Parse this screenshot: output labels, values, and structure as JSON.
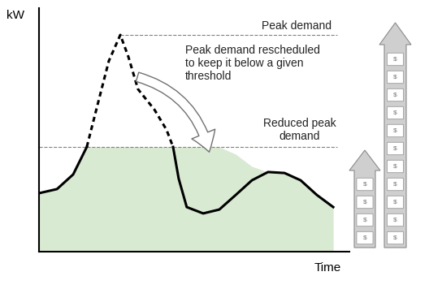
{
  "chart_data": {
    "type": "line",
    "xlabel": "Time",
    "ylabel": "kW",
    "x": [
      0,
      5.8,
      11.0,
      15.4,
      18.8,
      22.5,
      26.2,
      28.8,
      31.9,
      37.2,
      41.1,
      43.2,
      45.0,
      47.6,
      52.9,
      58.1,
      63.4,
      68.6,
      73.8,
      79.1,
      84.3,
      89.5,
      94.8
    ],
    "series": [
      {
        "type": "line",
        "color": "#000000",
        "values": [
          24.0,
          25.7,
          31.7,
          43.0,
          60.0,
          78.3,
          89.0,
          80.0,
          66.7,
          58.3,
          50.0,
          43.0,
          30.0,
          18.3,
          15.7,
          17.3,
          23.3,
          29.3,
          32.7,
          32.3,
          29.3,
          23.3,
          18.3
        ]
      },
      {
        "type": "area",
        "color": "#d9ead3",
        "values": [
          24.0,
          25.7,
          31.7,
          43.0,
          43.0,
          43.0,
          43.0,
          43.0,
          43.0,
          43.0,
          43.0,
          43.0,
          43.0,
          43.0,
          43.0,
          43.0,
          40.0,
          35.0,
          32.7,
          32.3,
          29.3,
          23.3,
          18.3
        ]
      }
    ],
    "xlim": [
      0,
      100
    ],
    "ylim": [
      0,
      100
    ],
    "xticks": [],
    "yticks": [],
    "tick_labels": false,
    "peak_demand": {
      "text": "Peak demand",
      "value": 89.0
    },
    "reduced_peak_demand": {
      "text": "Reduced peak demand",
      "value": 43.0
    },
    "annotation": "Peak demand rescheduled to keep it below a given threshold",
    "icon_text": "$"
  }
}
